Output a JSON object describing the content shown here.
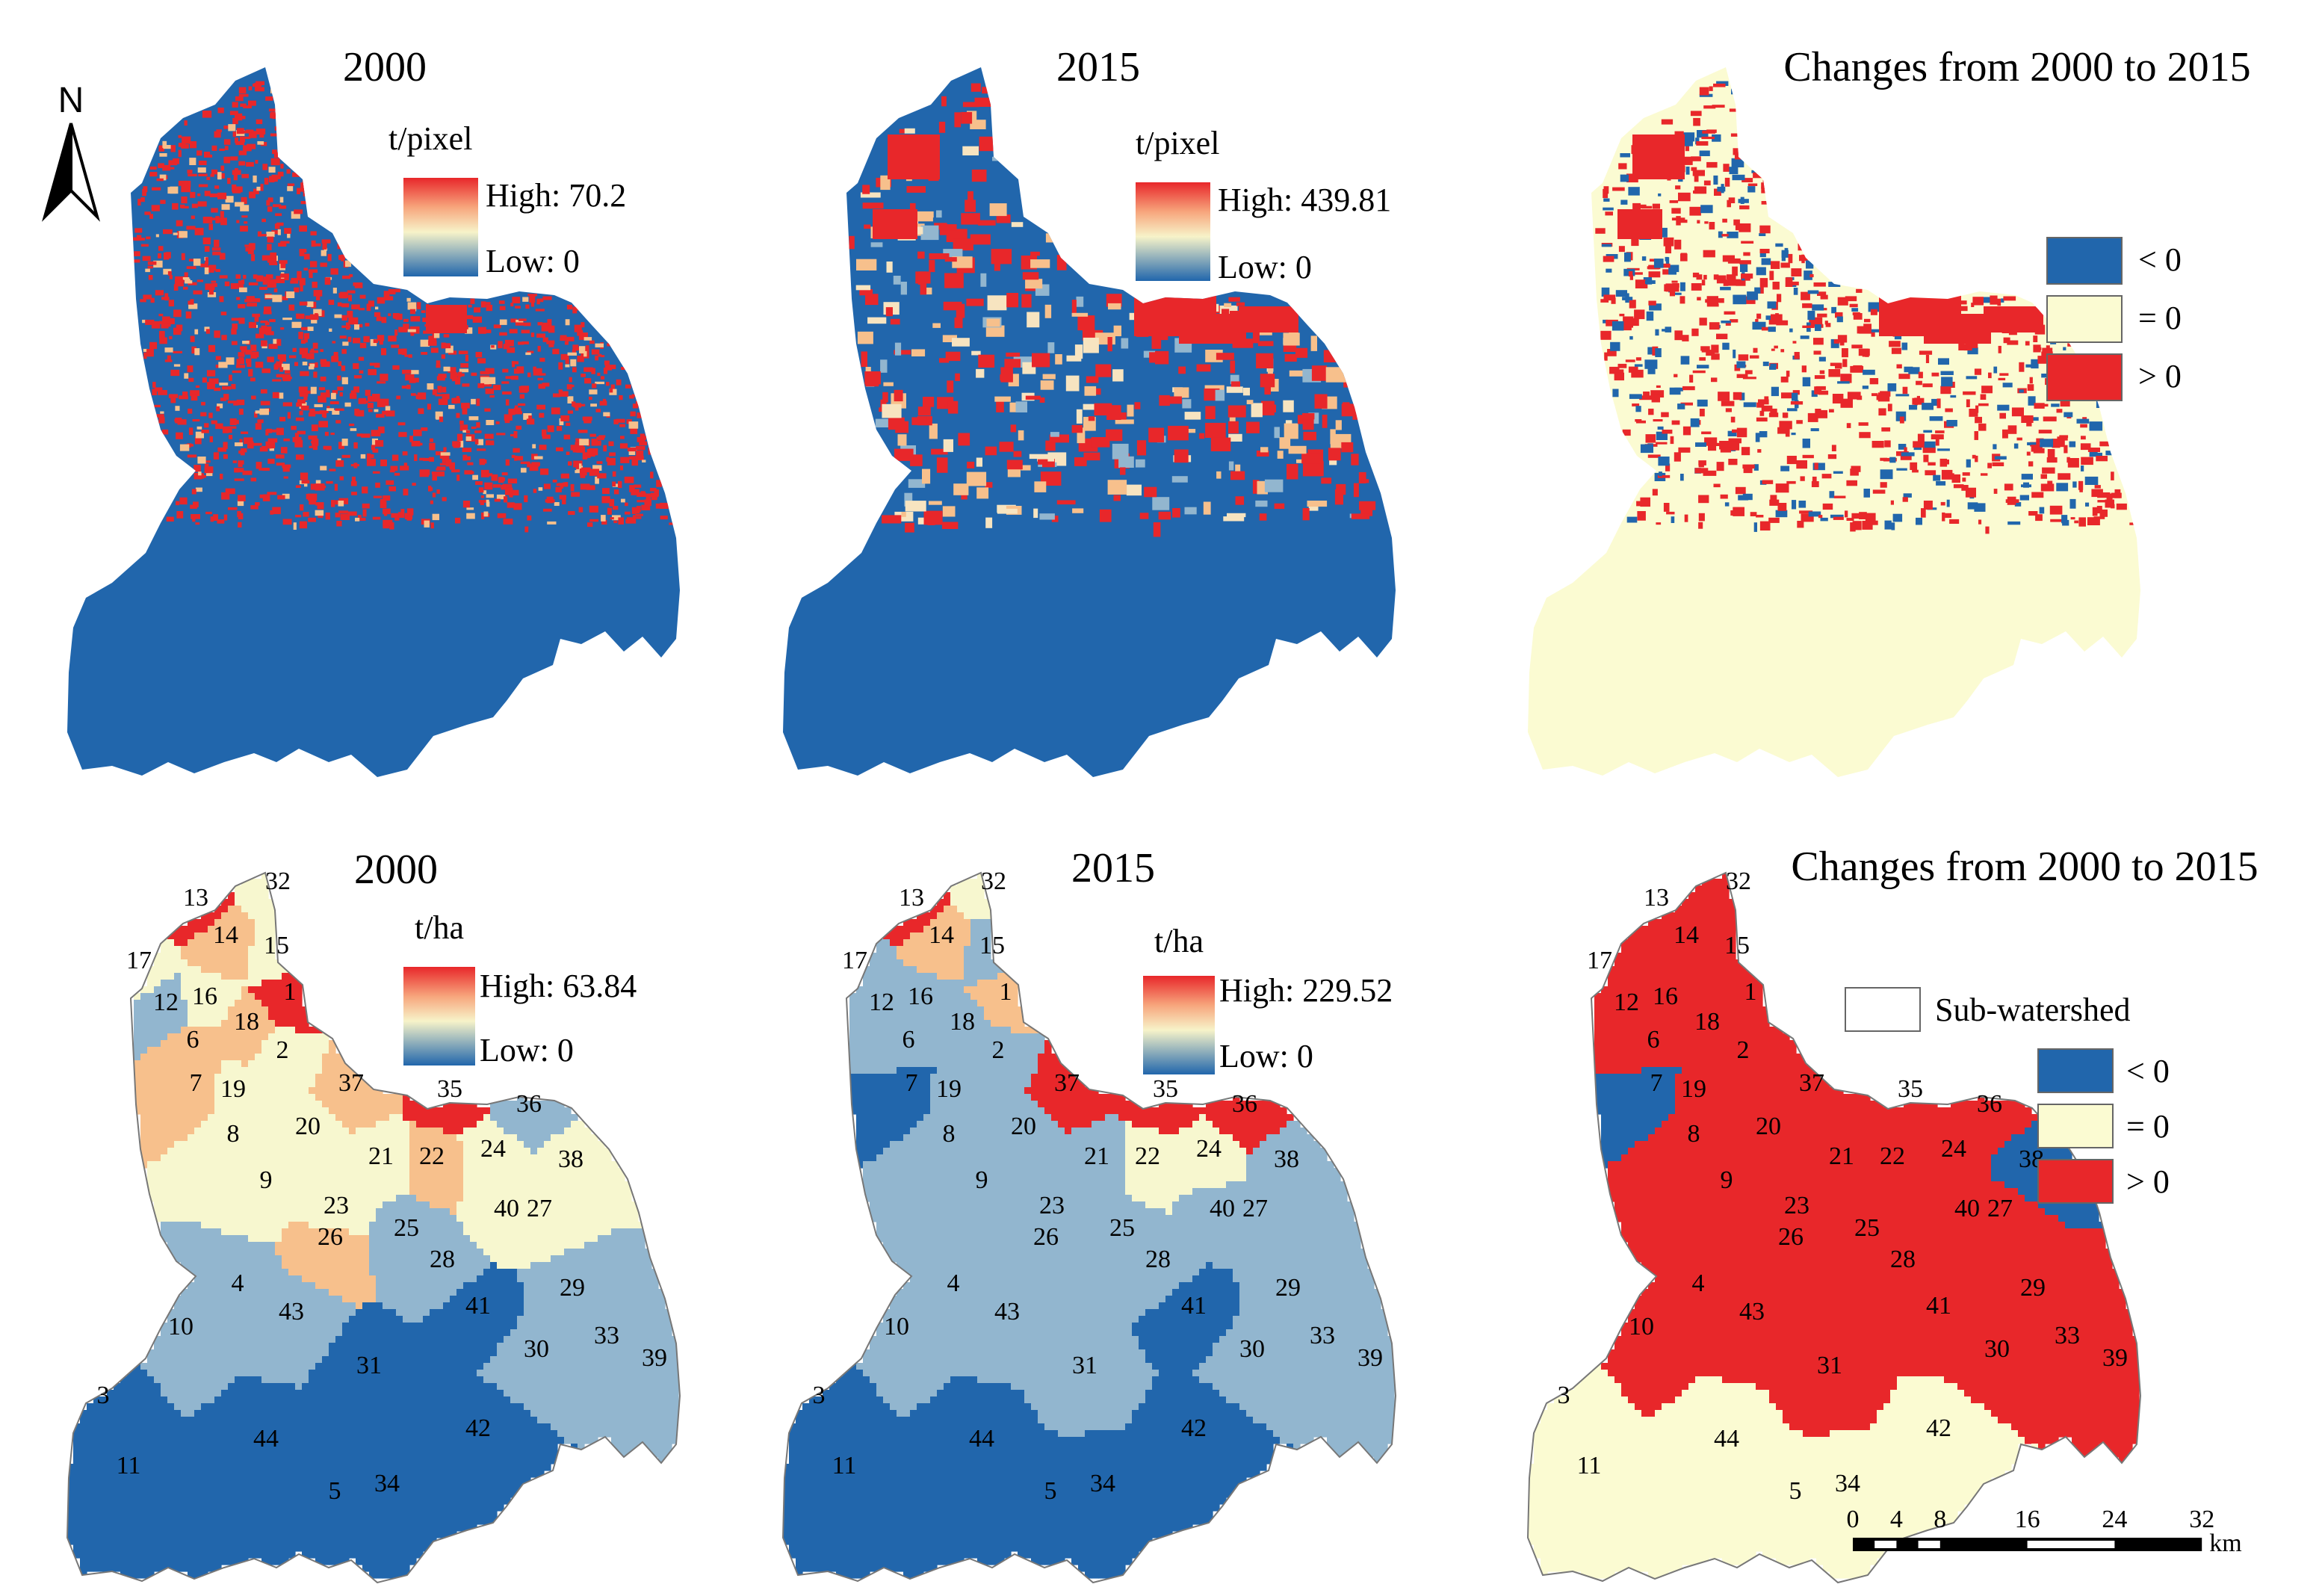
{
  "panels": [
    {
      "id": "a",
      "title": "2000",
      "unit": "t/pixel",
      "high": "High: 70.2",
      "low": "Low: 0"
    },
    {
      "id": "b",
      "title": "2015",
      "unit": "t/pixel",
      "high": "High: 439.81",
      "low": "Low: 0"
    },
    {
      "id": "c",
      "title": "Changes from 2000 to 2015",
      "legend": [
        "< 0",
        "= 0",
        "> 0"
      ]
    },
    {
      "id": "d",
      "title": "2000",
      "unit": "t/ha",
      "high": "High: 63.84",
      "low": "Low: 0"
    },
    {
      "id": "e",
      "title": "2015",
      "unit": "t/ha",
      "high": "High: 229.52",
      "low": "Low: 0"
    },
    {
      "id": "f",
      "title": "Changes from 2000 to 2015",
      "legend_box": "Sub-watershed",
      "legend": [
        "< 0",
        "= 0",
        "> 0"
      ]
    }
  ],
  "north_label": "N",
  "scale_bar": {
    "ticks": [
      "0",
      "4",
      "8",
      "16",
      "24",
      "32"
    ],
    "unit": "km"
  },
  "subwatershed_ids": [
    "1",
    "2",
    "3",
    "4",
    "5",
    "6",
    "7",
    "8",
    "9",
    "10",
    "11",
    "12",
    "13",
    "14",
    "15",
    "16",
    "17",
    "18",
    "19",
    "20",
    "21",
    "22",
    "23",
    "24",
    "25",
    "26",
    "27",
    "28",
    "29",
    "30",
    "31",
    "32",
    "33",
    "34",
    "35",
    "36",
    "37",
    "38",
    "39",
    "40",
    "41",
    "42",
    "43",
    "44"
  ],
  "colors": {
    "blue": "#2166ac",
    "pale": "#fbfbd2",
    "red": "#e8272a",
    "ramp": [
      "#2166ac",
      "#92b6cf",
      "#f7f7cf",
      "#f7c08c",
      "#e8272a"
    ]
  },
  "subwatershed_change": {
    "decrease": [
      "7",
      "38"
    ],
    "no_change": [
      "3",
      "5",
      "11",
      "34",
      "42",
      "44"
    ]
  }
}
